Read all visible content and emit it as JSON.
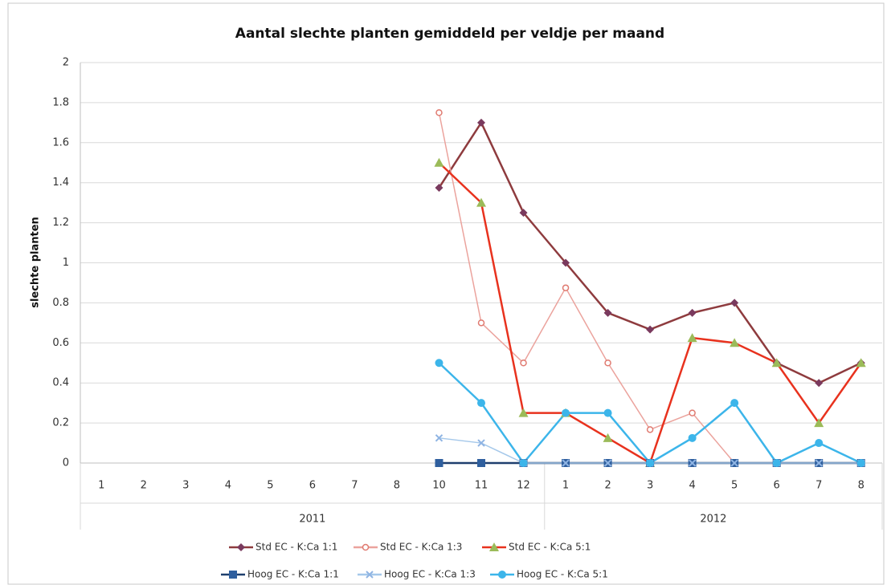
{
  "chart_data": {
    "type": "line",
    "title": "Aantal slechte planten gemiddeld per veldje per maand",
    "y_label": "slechte planten",
    "category_groups": [
      {
        "label": "2011",
        "categories": [
          "1",
          "2",
          "3",
          "4",
          "5",
          "6",
          "7",
          "8",
          "10",
          "11",
          "12"
        ]
      },
      {
        "label": "2012",
        "categories": [
          "1",
          "2",
          "3",
          "4",
          "5",
          "6",
          "7",
          "8"
        ]
      }
    ],
    "ylim": [
      0,
      2
    ],
    "yticks": [
      0,
      0.2,
      0.4,
      0.6,
      0.8,
      1,
      1.2,
      1.4,
      1.6,
      1.8,
      2
    ],
    "grid": true,
    "legend": "bottom",
    "series": [
      {
        "name": "Std EC - K:Ca 1:1",
        "color": "#8e3b3e",
        "marker": "diamond",
        "marker_color": "#7a3a5e",
        "values": [
          null,
          null,
          null,
          null,
          null,
          null,
          null,
          null,
          1.375,
          1.7,
          1.25,
          1,
          0.75,
          0.667,
          0.75,
          0.8,
          0.5,
          0.4,
          0.5
        ]
      },
      {
        "name": "Std EC - K:Ca 1:3",
        "color": "#eba39d",
        "marker": "open-circle",
        "marker_color": "#e07a70",
        "values": [
          null,
          null,
          null,
          null,
          null,
          null,
          null,
          null,
          1.75,
          0.7,
          0.5,
          0.875,
          0.5,
          0.167,
          0.25,
          0,
          0,
          0,
          0
        ]
      },
      {
        "name": "Std EC - K:Ca 5:1",
        "color": "#e8321e",
        "marker": "triangle",
        "marker_color": "#9bbb59",
        "values": [
          null,
          null,
          null,
          null,
          null,
          null,
          null,
          null,
          1.5,
          1.3,
          0.25,
          0.25,
          0.125,
          0,
          0.625,
          0.6,
          0.5,
          0.2,
          0.5
        ]
      },
      {
        "name": "Hoog EC - K:Ca 1:1",
        "color": "#1f3f6e",
        "marker": "square",
        "marker_color": "#2f5f9e",
        "values": [
          null,
          null,
          null,
          null,
          null,
          null,
          null,
          null,
          0,
          0,
          0,
          0,
          0,
          0,
          0,
          0,
          0,
          0,
          0
        ]
      },
      {
        "name": "Hoog EC - K:Ca 1:3",
        "color": "#a5c8ea",
        "marker": "x",
        "marker_color": "#8fb4e3",
        "values": [
          null,
          null,
          null,
          null,
          null,
          null,
          null,
          null,
          0.125,
          0.1,
          0,
          0,
          0,
          0,
          0,
          0,
          0,
          0,
          0
        ]
      },
      {
        "name": "Hoog EC - K:Ca 5:1",
        "color": "#3cb5ea",
        "marker": "circle",
        "marker_color": "#3cb5ea",
        "values": [
          null,
          null,
          null,
          null,
          null,
          null,
          null,
          null,
          0.5,
          0.3,
          0,
          0.25,
          0.25,
          0,
          0.125,
          0.3,
          0,
          0.1,
          0
        ]
      }
    ]
  }
}
